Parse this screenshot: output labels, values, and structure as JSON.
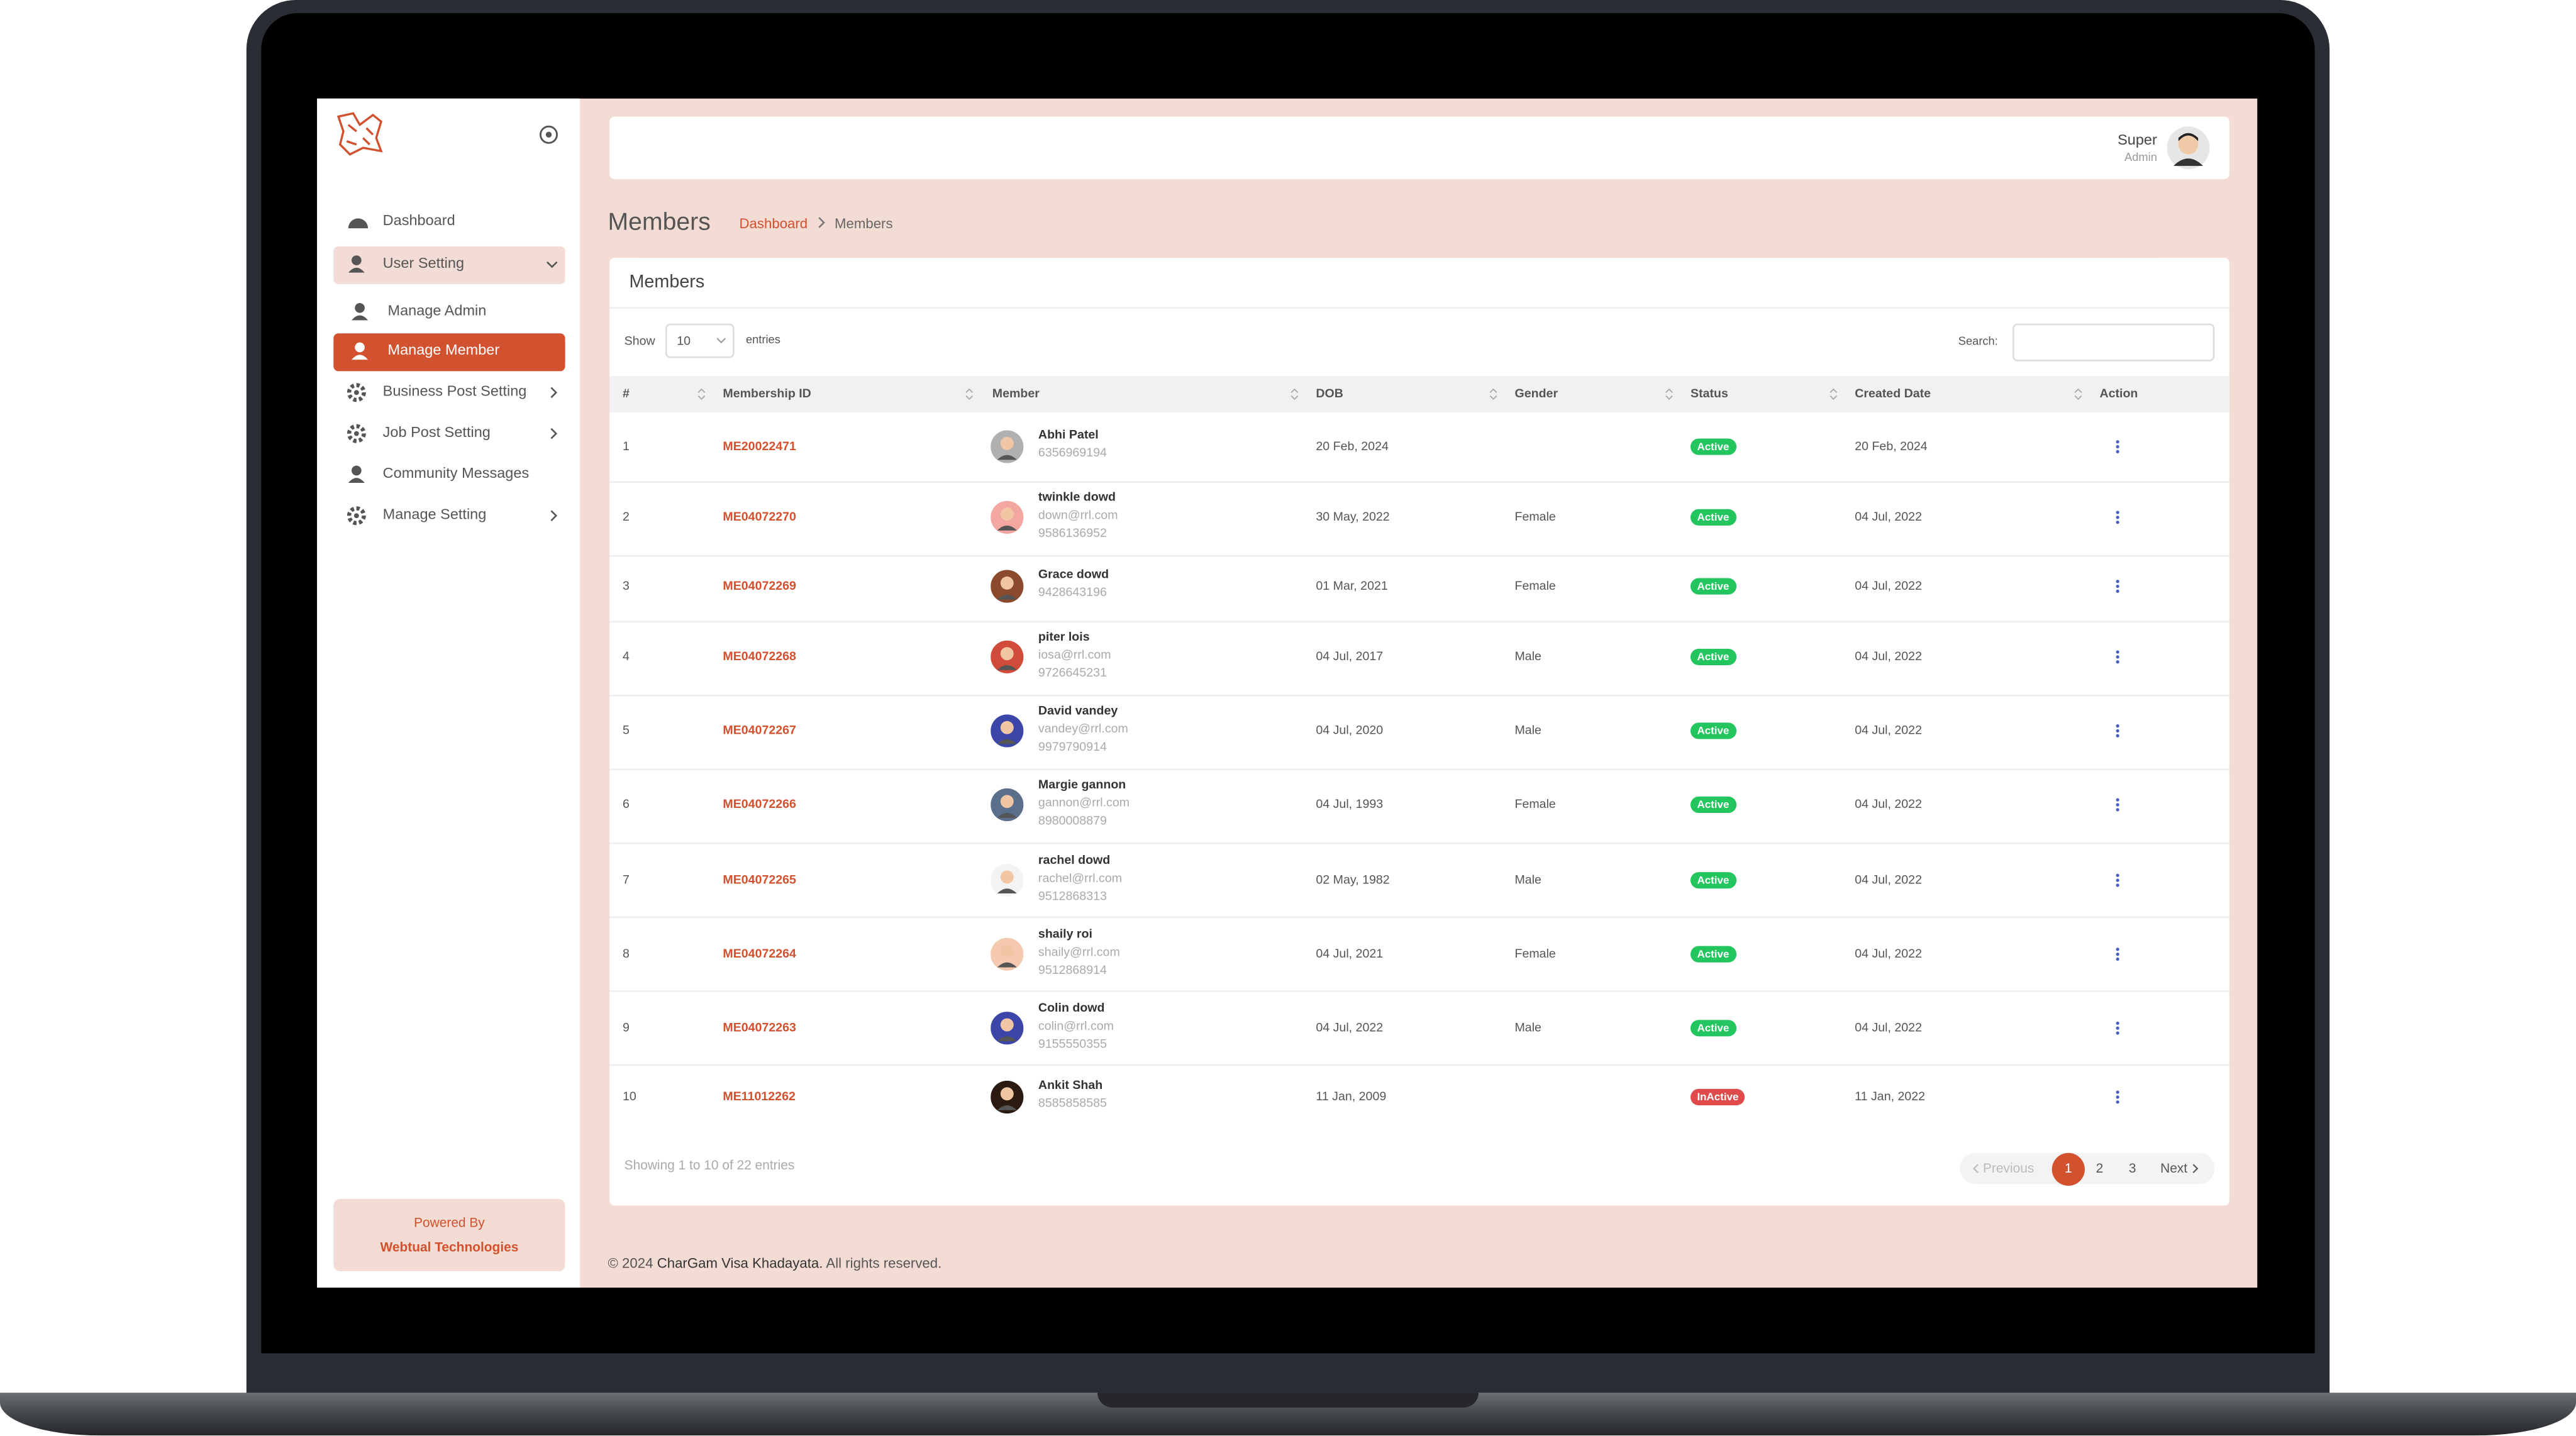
{
  "sidebar": {
    "menu": [
      "Dashboard",
      "User Setting",
      "Manage Admin",
      "Manage Member",
      "Business Post Setting",
      "Job Post Setting",
      "Community Messages",
      "Manage Setting"
    ],
    "powered_label": "Powered By",
    "powered_company": "Webtual Technologies"
  },
  "header": {
    "user_name": "Super",
    "user_role": "Admin"
  },
  "page": {
    "title": "Members",
    "breadcrumb": [
      "Dashboard",
      "Members"
    ]
  },
  "card": {
    "title": "Members",
    "show_label": "Show",
    "entries_value": "10",
    "entries_label": "entries",
    "search_label": "Search:"
  },
  "table": {
    "columns": [
      "#",
      "Membership ID",
      "Member",
      "DOB",
      "Gender",
      "Status",
      "Created Date",
      "Action"
    ],
    "rows": [
      {
        "num": 1,
        "id": "ME20022471",
        "name": "Abhi Patel",
        "phone": "6356969194",
        "dob": "20 Feb, 2024",
        "status": "Active",
        "created": "20 Feb, 2024"
      },
      {
        "num": 2,
        "id": "ME04072270",
        "name": "twinkle dowd",
        "email": "down@rrl.com",
        "phone": "9586136952",
        "dob": "30 May, 2022",
        "gender": "Female",
        "status": "Active",
        "created": "04 Jul, 2022"
      },
      {
        "num": 3,
        "id": "ME04072269",
        "name": "Grace dowd",
        "phone": "9428643196",
        "dob": "01 Mar, 2021",
        "gender": "Female",
        "status": "Active",
        "created": "04 Jul, 2022"
      },
      {
        "num": 4,
        "id": "ME04072268",
        "name": "piter lois",
        "email": "iosa@rrl.com",
        "phone": "9726645231",
        "dob": "04 Jul, 2017",
        "gender": "Male",
        "status": "Active",
        "created": "04 Jul, 2022"
      },
      {
        "num": 5,
        "id": "ME04072267",
        "name": "David vandey",
        "email": "vandey@rrl.com",
        "phone": "9979790914",
        "dob": "04 Jul, 2020",
        "gender": "Male",
        "status": "Active",
        "created": "04 Jul, 2022"
      },
      {
        "num": 6,
        "id": "ME04072266",
        "name": "Margie gannon",
        "email": "gannon@rrl.com",
        "phone": "8980008879",
        "dob": "04 Jul, 1993",
        "gender": "Female",
        "status": "Active",
        "created": "04 Jul, 2022"
      },
      {
        "num": 7,
        "id": "ME04072265",
        "name": "rachel dowd",
        "email": "rachel@rrl.com",
        "phone": "9512868313",
        "dob": "02 May, 1982",
        "gender": "Male",
        "status": "Active",
        "created": "04 Jul, 2022"
      },
      {
        "num": 8,
        "id": "ME04072264",
        "name": "shaily roi",
        "email": "shaily@rrl.com",
        "phone": "9512868914",
        "dob": "04 Jul, 2021",
        "gender": "Female",
        "status": "Active",
        "created": "04 Jul, 2022"
      },
      {
        "num": 9,
        "id": "ME04072263",
        "name": "Colin dowd",
        "email": "colin@rrl.com",
        "phone": "9155550355",
        "dob": "04 Jul, 2022",
        "gender": "Male",
        "status": "Active",
        "created": "04 Jul, 2022"
      },
      {
        "num": 10,
        "id": "ME11012262",
        "name": "Ankit Shah",
        "phone": "8585858585",
        "dob": "11 Jan, 2009",
        "status": "InActive",
        "created": "11 Jan, 2022"
      }
    ]
  },
  "info": "Showing 1 to 10 of 22 entries",
  "pagination": {
    "previous": "Previous",
    "pages": [
      "1",
      "2",
      "3"
    ],
    "next": "Next"
  },
  "footer": {
    "prefix": "© 2024",
    "brand": "CharGam Visa Khadayata.",
    "suffix": "All rights reserved."
  }
}
